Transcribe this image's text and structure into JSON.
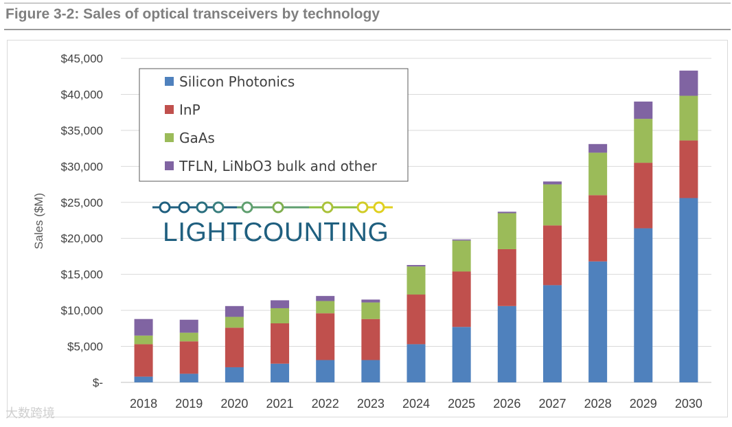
{
  "figure_title": "Figure 3-2: Sales of optical transceivers by technology",
  "logo_text": "LIGHTCOUNTING",
  "watermark": "大数跨境",
  "colors": {
    "silicon_photonics": "#4f81bd",
    "inp": "#c0504d",
    "gaas": "#9bbb59",
    "tfln": "#8064a2",
    "logo_dark": "#1f5f7f",
    "logo_accent_green": "#8cbf3f",
    "logo_accent_yellow": "#e0d020",
    "title_gray": "#7f7f7f"
  },
  "chart_data": {
    "type": "bar",
    "stacked": true,
    "title": "",
    "xlabel": "",
    "ylabel": "Sales ($M)",
    "ylim": [
      0,
      45000
    ],
    "yticks": [
      0,
      5000,
      10000,
      15000,
      20000,
      25000,
      30000,
      35000,
      40000,
      45000
    ],
    "ytick_labels": [
      "$-",
      "$5,000",
      "$10,000",
      "$15,000",
      "$20,000",
      "$25,000",
      "$30,000",
      "$35,000",
      "$40,000",
      "$45,000"
    ],
    "grid": true,
    "legend_position": "top-left",
    "categories": [
      "2018",
      "2019",
      "2020",
      "2021",
      "2022",
      "2023",
      "2024",
      "2025",
      "2026",
      "2027",
      "2028",
      "2029",
      "2030"
    ],
    "series": [
      {
        "name": "Silicon Photonics",
        "color": "#4f81bd",
        "values": [
          800,
          1200,
          2100,
          2600,
          3100,
          3100,
          5300,
          7700,
          10600,
          13500,
          16800,
          21400,
          25600
        ]
      },
      {
        "name": "InP",
        "color": "#c0504d",
        "values": [
          4500,
          4500,
          5500,
          5600,
          6500,
          5700,
          6900,
          7700,
          7900,
          8300,
          9200,
          9100,
          8000
        ]
      },
      {
        "name": "GaAs",
        "color": "#9bbb59",
        "values": [
          1200,
          1200,
          1500,
          2100,
          1700,
          2300,
          3900,
          4300,
          5000,
          5700,
          5900,
          6100,
          6200
        ]
      },
      {
        "name": "TFLN, LiNbO3 bulk and other",
        "color": "#8064a2",
        "values": [
          2300,
          1800,
          1500,
          1100,
          700,
          400,
          200,
          150,
          200,
          400,
          1200,
          2400,
          3500
        ]
      }
    ]
  }
}
